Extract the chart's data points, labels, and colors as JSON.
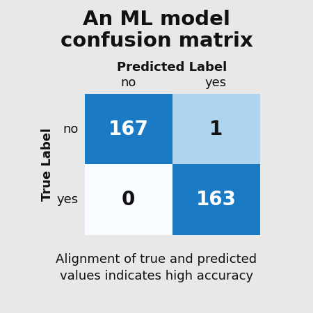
{
  "title_line1": "An ML model",
  "title_line2": "confusion matrix",
  "matrix": [
    [
      167,
      1
    ],
    [
      0,
      163
    ]
  ],
  "predicted_label": "Predicted Label",
  "true_label": "True Label",
  "col_labels": [
    "no",
    "yes"
  ],
  "row_labels": [
    "no",
    "yes"
  ],
  "colors": {
    "high": "#1a7bc4",
    "low": "#aed4f0",
    "zero": "#f8fbff",
    "background": "#e8e8e8",
    "text_white": "#ffffff",
    "text_dark": "#111111"
  },
  "cell_colors": [
    [
      "high",
      "low"
    ],
    [
      "zero",
      "high"
    ]
  ],
  "text_colors": [
    [
      "white",
      "dark"
    ],
    [
      "dark",
      "white"
    ]
  ],
  "subtitle": "Alignment of true and predicted\nvalues indicates high accuracy",
  "title_fontsize": 21,
  "pred_label_fontsize": 13,
  "tick_fontsize": 13,
  "true_label_fontsize": 13,
  "value_fontsize": 20,
  "subtitle_fontsize": 13
}
